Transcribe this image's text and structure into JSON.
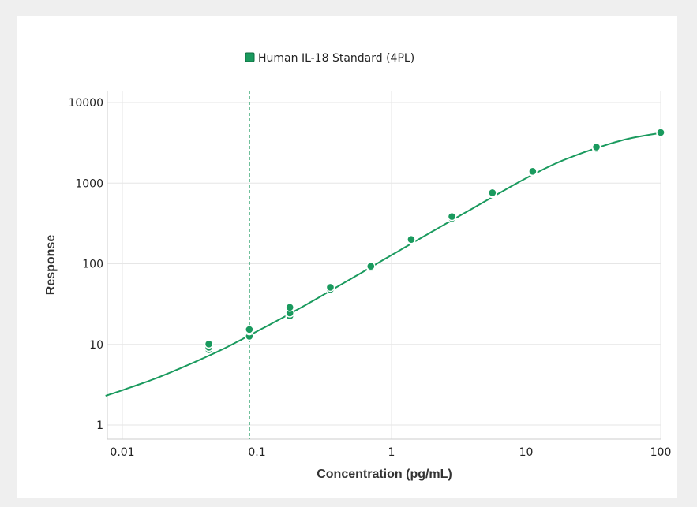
{
  "chart_data": {
    "type": "scatter",
    "title": "",
    "xlabel": "Concentration (pg/mL)",
    "ylabel": "Response",
    "x_scale": "log",
    "y_scale": "log",
    "xlim": [
      0.0075,
      100
    ],
    "ylim": [
      0.7,
      14000
    ],
    "x_ticks": [
      0.01,
      0.1,
      1,
      10,
      100
    ],
    "x_tick_labels": [
      "0.01",
      "0.1",
      "1",
      "10",
      "100"
    ],
    "y_ticks": [
      1,
      10,
      100,
      1000,
      10000
    ],
    "y_tick_labels": [
      "1",
      "10",
      "100",
      "1000",
      "10000"
    ],
    "grid": true,
    "legend_position": "top-center",
    "colors": {
      "series": "#1a9a5e",
      "background": "#ffffff",
      "frame": "#efefef"
    },
    "reference_line": {
      "x": 0.088,
      "style": "dashed"
    },
    "series": [
      {
        "name": "Human IL-18 Standard (4PL)",
        "points": [
          {
            "x": 0.0439,
            "y": 8.6
          },
          {
            "x": 0.0439,
            "y": 9.2
          },
          {
            "x": 0.0439,
            "y": 10.1
          },
          {
            "x": 0.0878,
            "y": 12.6
          },
          {
            "x": 0.0878,
            "y": 14.7
          },
          {
            "x": 0.0878,
            "y": 15.3
          },
          {
            "x": 0.1756,
            "y": 22.5
          },
          {
            "x": 0.1756,
            "y": 24.5
          },
          {
            "x": 0.1756,
            "y": 28.8
          },
          {
            "x": 0.351,
            "y": 48
          },
          {
            "x": 0.351,
            "y": 51
          },
          {
            "x": 0.702,
            "y": 90
          },
          {
            "x": 0.702,
            "y": 93
          },
          {
            "x": 1.4,
            "y": 195
          },
          {
            "x": 1.4,
            "y": 200
          },
          {
            "x": 2.81,
            "y": 365
          },
          {
            "x": 2.81,
            "y": 385
          },
          {
            "x": 5.62,
            "y": 740
          },
          {
            "x": 5.62,
            "y": 760
          },
          {
            "x": 11.2,
            "y": 1370
          },
          {
            "x": 11.2,
            "y": 1400
          },
          {
            "x": 33.3,
            "y": 2700
          },
          {
            "x": 33.3,
            "y": 2800
          },
          {
            "x": 100,
            "y": 4150
          },
          {
            "x": 100,
            "y": 4250
          }
        ],
        "fit": {
          "model": "4PL",
          "curve": [
            {
              "x": 0.0075,
              "y": 2.3
            },
            {
              "x": 0.01,
              "y": 2.7
            },
            {
              "x": 0.02,
              "y": 4.1
            },
            {
              "x": 0.05,
              "y": 8.0
            },
            {
              "x": 0.1,
              "y": 14.5
            },
            {
              "x": 0.2,
              "y": 27
            },
            {
              "x": 0.5,
              "y": 65
            },
            {
              "x": 1,
              "y": 128
            },
            {
              "x": 2,
              "y": 250
            },
            {
              "x": 5,
              "y": 600
            },
            {
              "x": 10,
              "y": 1150
            },
            {
              "x": 20,
              "y": 2000
            },
            {
              "x": 50,
              "y": 3350
            },
            {
              "x": 100,
              "y": 4200
            }
          ]
        }
      }
    ]
  }
}
